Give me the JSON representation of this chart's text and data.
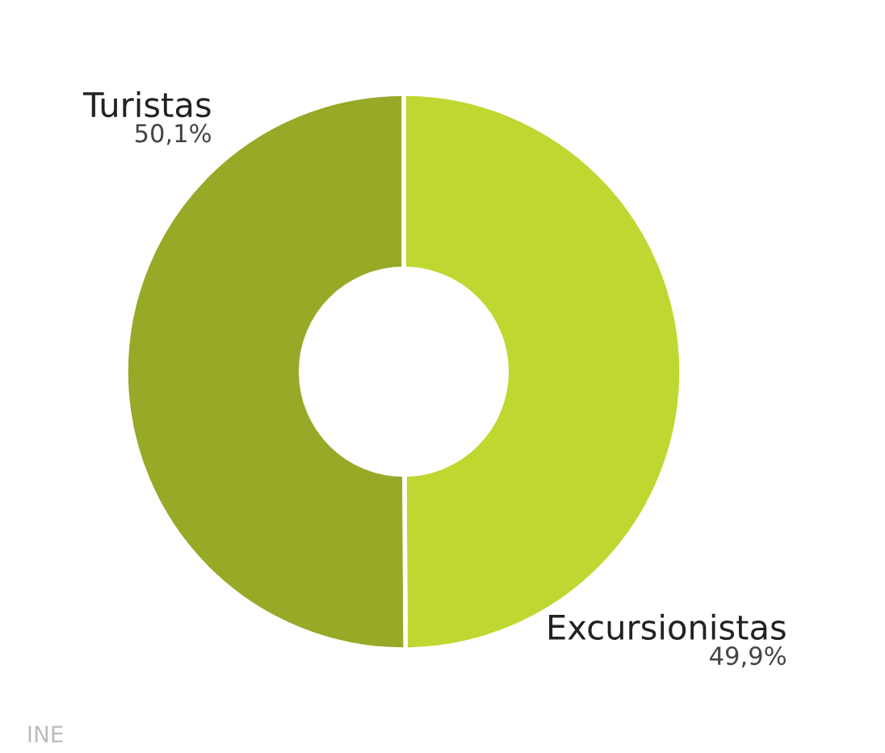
{
  "chart_data": {
    "type": "donut",
    "categories": [
      "Excursionistas",
      "Turistas"
    ],
    "values": [
      49.9,
      50.1
    ],
    "value_labels": [
      "49,9%",
      "50,1%"
    ],
    "colors": [
      "#bfd730",
      "#97a926"
    ],
    "annotations": [
      "INE"
    ]
  }
}
